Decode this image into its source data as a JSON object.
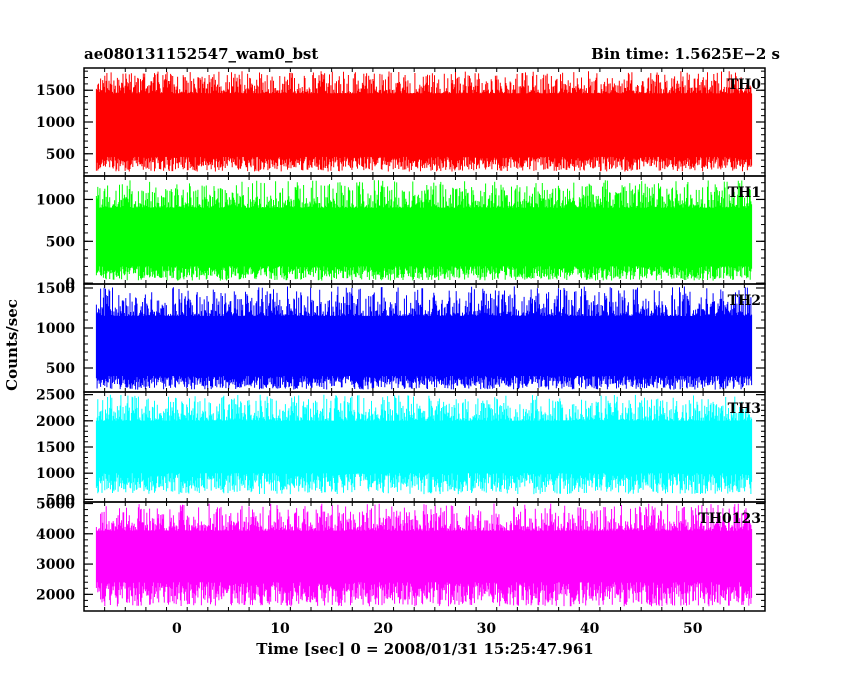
{
  "header": {
    "title": "ae080131152547_wam0_bst",
    "bin_time": "Bin time: 1.5625E−2 s"
  },
  "chart_data": {
    "type": "line",
    "title": "ae080131152547_wam0_bst",
    "xlabel": "Time [sec] 0 = 2008/01/31 15:25:47.961",
    "ylabel": "Counts/sec",
    "xlim": [
      -9,
      57
    ],
    "data_x_range": [
      -7.8,
      55.7
    ],
    "x_ticks": [
      0,
      10,
      20,
      30,
      40,
      50
    ],
    "x_tick_labels": [
      "0",
      "10",
      "20",
      "30",
      "40",
      "50"
    ],
    "grid": false,
    "legend": "none",
    "series": [
      {
        "name": "TH0",
        "color": "#ff0000",
        "ylim": [
          150,
          1850
        ],
        "y_ticks": [
          500,
          1000,
          1500
        ],
        "y_tick_labels": [
          "500",
          "1000",
          "1500"
        ],
        "typical_min": 220,
        "band_low": 450,
        "band_high": 1450,
        "typical_max": 1800
      },
      {
        "name": "TH1",
        "color": "#00ff00",
        "ylim": [
          -10,
          1280
        ],
        "y_ticks": [
          0,
          500,
          1000
        ],
        "y_tick_labels": [
          "0",
          "500",
          "1000"
        ],
        "typical_min": 30,
        "band_low": 200,
        "band_high": 900,
        "typical_max": 1230
      },
      {
        "name": "TH2",
        "color": "#0000ff",
        "ylim": [
          200,
          1550
        ],
        "y_ticks": [
          500,
          1000,
          1500
        ],
        "y_tick_labels": [
          "500",
          "1000",
          "1500"
        ],
        "typical_min": 230,
        "band_low": 400,
        "band_high": 1150,
        "typical_max": 1520
      },
      {
        "name": "TH3",
        "color": "#00ffff",
        "ylim": [
          450,
          2550
        ],
        "y_ticks": [
          500,
          1000,
          1500,
          2000,
          2500
        ],
        "y_tick_labels": [
          "500",
          "1000",
          "1500",
          "2000",
          "2500"
        ],
        "typical_min": 600,
        "band_low": 1000,
        "band_high": 2000,
        "typical_max": 2500
      },
      {
        "name": "TH0123",
        "color": "#ff00ff",
        "ylim": [
          1450,
          5050
        ],
        "y_ticks": [
          2000,
          3000,
          4000,
          5000
        ],
        "y_tick_labels": [
          "2000",
          "3000",
          "4000",
          "5000"
        ],
        "typical_min": 1600,
        "band_low": 2400,
        "band_high": 4100,
        "typical_max": 5000
      }
    ]
  }
}
